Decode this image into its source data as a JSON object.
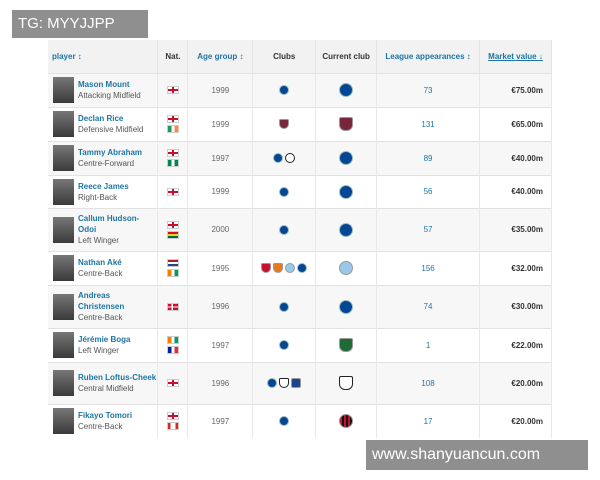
{
  "watermarks": {
    "top": "TG: MYYJJPP",
    "bottom": "www.shanyuancun.com"
  },
  "headers": {
    "player": "player ↕",
    "nat": "Nat.",
    "age": "Age group ↕",
    "clubs": "Clubs",
    "current": "Current club",
    "apps": "League appearances ↕",
    "value": "Market value ↓"
  },
  "rows": [
    {
      "name": "Mason Mount",
      "position": "Attacking Midfield",
      "flags": [
        "england"
      ],
      "age": "1999",
      "clubs": [
        "chelsea"
      ],
      "current": "chelsea",
      "apps": "73",
      "value": "€75.00m"
    },
    {
      "name": "Declan Rice",
      "position": "Defensive Midfield",
      "flags": [
        "england",
        "ireland"
      ],
      "age": "1999",
      "clubs": [
        "west-ham"
      ],
      "current": "west-ham",
      "apps": "131",
      "value": "€65.00m"
    },
    {
      "name": "Tammy Abraham",
      "position": "Centre-Forward",
      "flags": [
        "england",
        "nigeria"
      ],
      "age": "1997",
      "clubs": [
        "chelsea",
        "swansea"
      ],
      "current": "chelsea",
      "apps": "89",
      "value": "€40.00m"
    },
    {
      "name": "Reece James",
      "position": "Right-Back",
      "flags": [
        "england"
      ],
      "age": "1999",
      "clubs": [
        "chelsea"
      ],
      "current": "chelsea",
      "apps": "56",
      "value": "€40.00m"
    },
    {
      "name": "Callum Hudson-Odoi",
      "position": "Left Winger",
      "flags": [
        "england",
        "ghana"
      ],
      "age": "2000",
      "clubs": [
        "chelsea"
      ],
      "current": "chelsea",
      "apps": "57",
      "value": "€35.00m"
    },
    {
      "name": "Nathan Aké",
      "position": "Centre-Back",
      "flags": [
        "netherlands",
        "ivory-coast"
      ],
      "age": "1995",
      "clubs": [
        "bournemouth",
        "watford",
        "man-city",
        "chelsea"
      ],
      "current": "man-city",
      "apps": "156",
      "value": "€32.00m"
    },
    {
      "name": "Andreas Christensen",
      "position": "Centre-Back",
      "flags": [
        "denmark"
      ],
      "age": "1996",
      "clubs": [
        "chelsea"
      ],
      "current": "chelsea",
      "apps": "74",
      "value": "€30.00m"
    },
    {
      "name": "Jérémie Boga",
      "position": "Left Winger",
      "flags": [
        "ivory-coast",
        "france"
      ],
      "age": "1997",
      "clubs": [
        "chelsea"
      ],
      "current": "sassuolo",
      "apps": "1",
      "value": "€22.00m"
    },
    {
      "name": "Ruben Loftus-Cheek",
      "position": "Central Midfield",
      "flags": [
        "england"
      ],
      "age": "1996",
      "clubs": [
        "chelsea",
        "fulham",
        "crystal-palace"
      ],
      "current": "fulham",
      "apps": "108",
      "value": "€20.00m"
    },
    {
      "name": "Fikayo Tomori",
      "position": "Centre-Back",
      "flags": [
        "england",
        "canada"
      ],
      "age": "1997",
      "clubs": [
        "chelsea"
      ],
      "current": "ac-milan",
      "apps": "17",
      "value": "€20.00m"
    }
  ]
}
